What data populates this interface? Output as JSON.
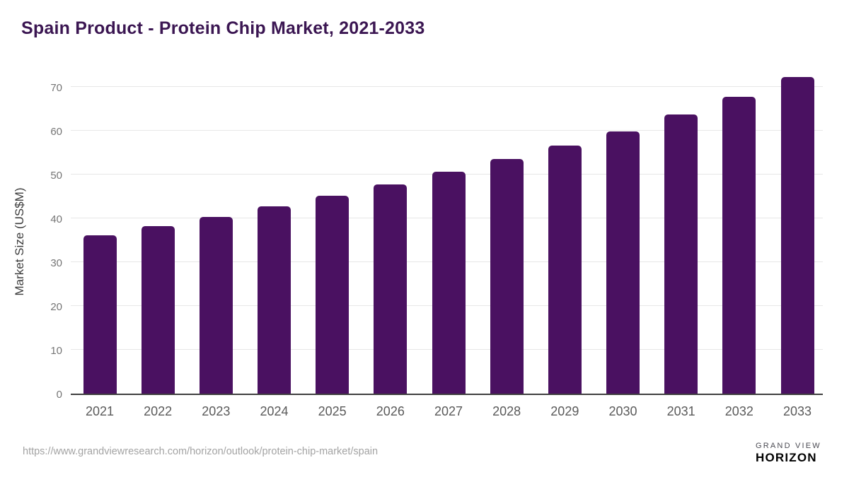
{
  "title": {
    "text": "Spain Product - Protein Chip Market, 2021-2033"
  },
  "chart_data": {
    "type": "bar",
    "title": "Spain Product - Protein Chip Market, 2021-2033",
    "categories": [
      "2021",
      "2022",
      "2023",
      "2024",
      "2025",
      "2026",
      "2027",
      "2028",
      "2029",
      "2030",
      "2031",
      "2032",
      "2033"
    ],
    "values": [
      36.2,
      38.3,
      40.4,
      42.7,
      45.1,
      47.7,
      50.6,
      53.5,
      56.6,
      59.8,
      63.7,
      67.7,
      72.2
    ],
    "xlabel": "",
    "ylabel": "Market Size (US$M)",
    "ylim": [
      0,
      70
    ],
    "yticks": [
      0,
      10,
      20,
      30,
      40,
      50,
      60,
      70
    ],
    "grid": true,
    "legend": false,
    "bar_color": "#4A1161",
    "gridline_color": "#e7e7e7",
    "axis_line_color": "#3f3f3f"
  },
  "footer": {
    "source_url": "https://www.grandviewresearch.com/horizon/outlook/protein-chip-market/spain",
    "logo": {
      "brand_top": "GRAND VIEW",
      "brand_bottom": "HORIZON",
      "circle_top_color": "#2b1a44",
      "circle_bottom_color": "#59c5f1",
      "brand_top_color": "#4a4a52",
      "brand_bottom_color": "#2d1b45"
    }
  },
  "colors": {
    "title": "#3b1652",
    "background": "#ffffff",
    "y_tick_label": "#757575",
    "x_tick_label": "#5a5a5a",
    "url_text": "#a3a3a3"
  }
}
